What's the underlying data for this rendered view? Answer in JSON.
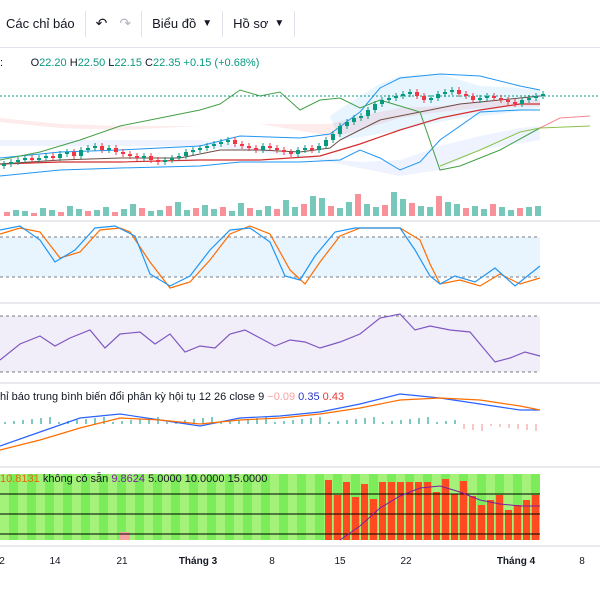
{
  "toolbar": {
    "indicators_label": "Các chỉ báo",
    "chart_type_label": "Biểu đồ",
    "profile_label": "Hồ sơ"
  },
  "ohlc": {
    "o_label": "O",
    "o_value": "22.20",
    "h_label": "H",
    "h_value": "22.50",
    "l_label": "L",
    "l_value": "22.15",
    "c_label": "C",
    "c_value": "22.35",
    "change": "+0.15 (+0.68%)"
  },
  "macd_legend": {
    "name": "hỉ báo trung bình biến đổi phân kỳ hội tụ",
    "params": "12 26 close 9",
    "hist": "−0.09",
    "macd": "0.35",
    "signal": "0.43"
  },
  "bottom_legend": {
    "v1": "10.8131",
    "na": "không có sẵn",
    "v2": "9.8624",
    "l1": "5.0000",
    "l2": "10.0000",
    "l3": "15.0000"
  },
  "x_axis": [
    {
      "label": "2",
      "bold": false
    },
    {
      "label": "14",
      "bold": false
    },
    {
      "label": "21",
      "bold": false
    },
    {
      "label": "Tháng 3",
      "bold": true
    },
    {
      "label": "8",
      "bold": false
    },
    {
      "label": "15",
      "bold": false
    },
    {
      "label": "22",
      "bold": false
    },
    {
      "label": "Tháng 4",
      "bold": true
    },
    {
      "label": "8",
      "bold": false
    }
  ],
  "colors": {
    "up": "#089981",
    "down": "#f23645",
    "accent": "#2962ff",
    "upper_band": "#2196f3",
    "fast_line": "#ff6d00",
    "rsi": "#7e57c2"
  },
  "chart_data": {
    "type": "candlestick",
    "last_close": 22.35,
    "stoch_bands": [
      20,
      80
    ],
    "rsi_bands": [
      30,
      70
    ]
  }
}
